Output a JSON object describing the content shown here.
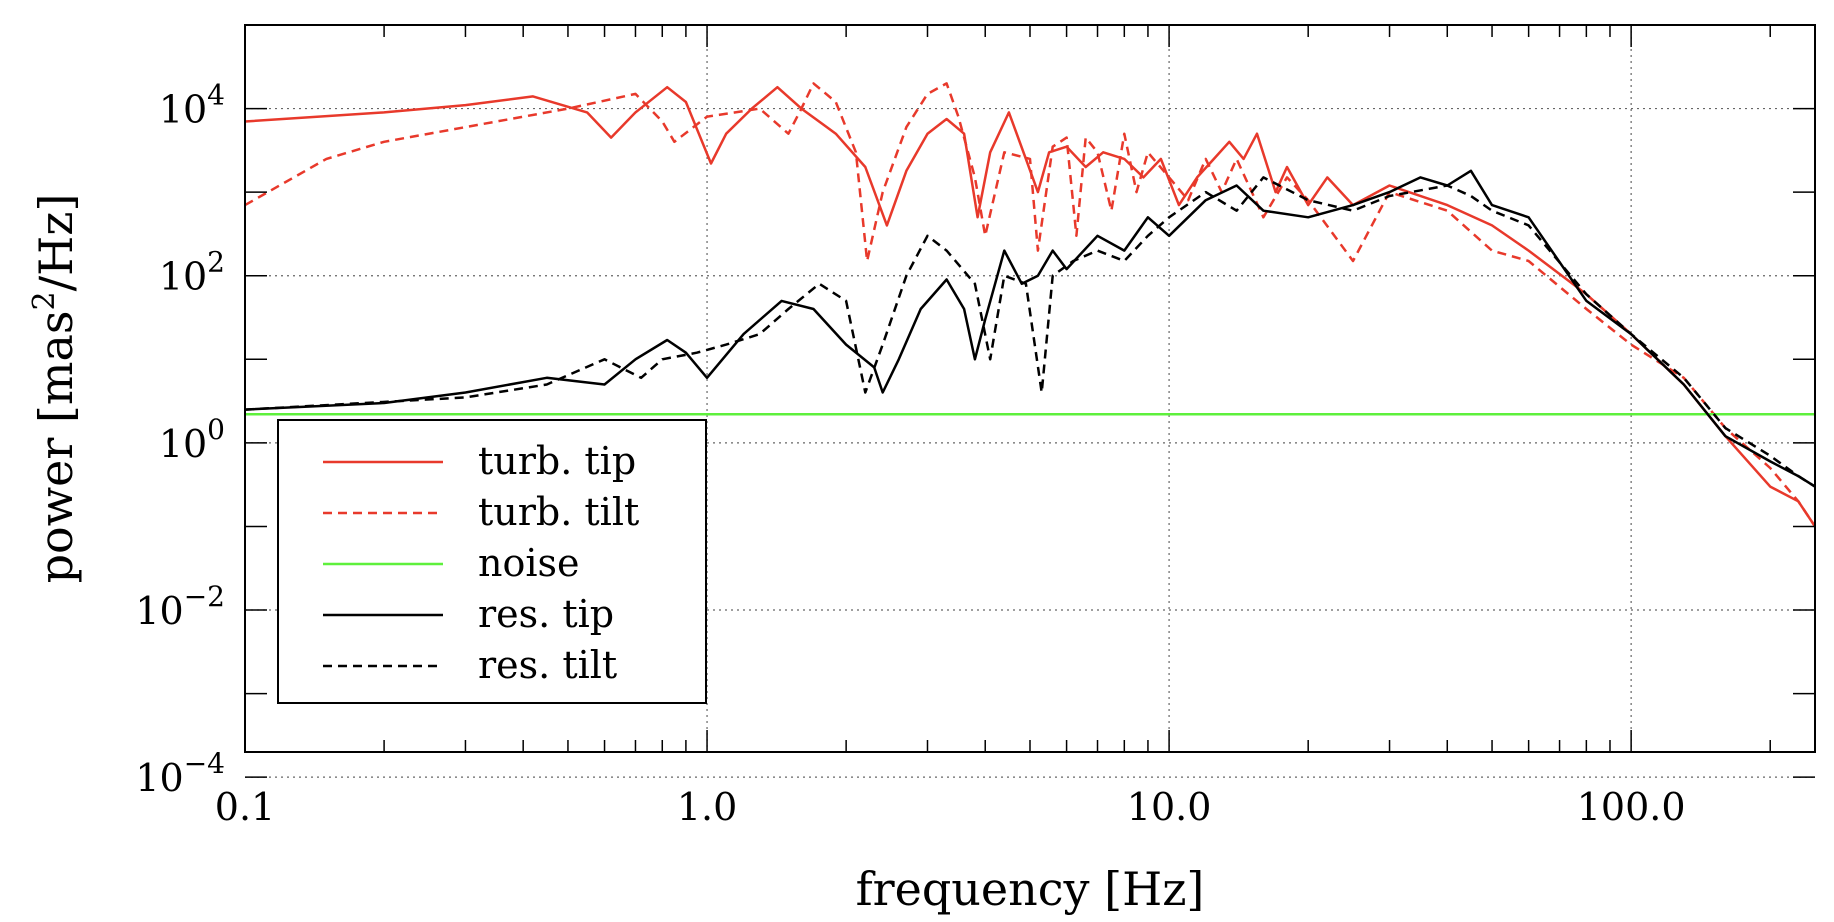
{
  "chart_data": {
    "type": "line",
    "title": "",
    "xlabel": "frequency [Hz]",
    "ylabel_base": "power [mas",
    "ylabel_sup": "2",
    "ylabel_tail": "/Hz]",
    "xscale": "log",
    "yscale": "log",
    "xlim": [
      0.1,
      250
    ],
    "ylim": [
      0.0002,
      100000
    ],
    "x_ticks": [
      {
        "value": 0.1,
        "label": "0.1"
      },
      {
        "value": 1.0,
        "label": "1.0"
      },
      {
        "value": 10.0,
        "label": "10.0"
      },
      {
        "value": 100.0,
        "label": "100.0"
      }
    ],
    "y_ticks": [
      {
        "value": 0.0001,
        "base": "10",
        "exp": "−4"
      },
      {
        "value": 0.01,
        "base": "10",
        "exp": "−2"
      },
      {
        "value": 1,
        "base": "10",
        "exp": "0"
      },
      {
        "value": 100,
        "base": "10",
        "exp": "2"
      },
      {
        "value": 10000,
        "base": "10",
        "exp": "4"
      }
    ],
    "grid": true,
    "legend_position": "bottom-left",
    "colors": {
      "turb": "#e8392b",
      "noise": "#5ef03c",
      "res": "#000000"
    },
    "series": [
      {
        "name": "turb. tip",
        "color": "#e8392b",
        "dash": "solid",
        "points": [
          [
            0.1,
            7000
          ],
          [
            0.2,
            9000
          ],
          [
            0.3,
            11000
          ],
          [
            0.42,
            14000
          ],
          [
            0.55,
            9000
          ],
          [
            0.62,
            4500
          ],
          [
            0.7,
            9000
          ],
          [
            0.82,
            18000
          ],
          [
            0.9,
            12000
          ],
          [
            1.02,
            2200
          ],
          [
            1.1,
            5000
          ],
          [
            1.25,
            10000
          ],
          [
            1.42,
            18000
          ],
          [
            1.6,
            10000
          ],
          [
            1.9,
            5000
          ],
          [
            2.2,
            2000
          ],
          [
            2.45,
            400
          ],
          [
            2.7,
            1800
          ],
          [
            3.0,
            5000
          ],
          [
            3.3,
            7500
          ],
          [
            3.6,
            5000
          ],
          [
            3.85,
            500
          ],
          [
            4.1,
            3000
          ],
          [
            4.5,
            9000
          ],
          [
            4.9,
            2500
          ],
          [
            5.2,
            1000
          ],
          [
            5.5,
            3000
          ],
          [
            6.0,
            3500
          ],
          [
            6.6,
            2000
          ],
          [
            7.2,
            3000
          ],
          [
            8.0,
            2500
          ],
          [
            8.8,
            1500
          ],
          [
            9.6,
            2500
          ],
          [
            10.5,
            700
          ],
          [
            11.5,
            1500
          ],
          [
            12.5,
            2500
          ],
          [
            13.5,
            4000
          ],
          [
            14.5,
            2500
          ],
          [
            15.5,
            5000
          ],
          [
            17,
            1000
          ],
          [
            18,
            2000
          ],
          [
            20,
            700
          ],
          [
            22,
            1500
          ],
          [
            25,
            700
          ],
          [
            30,
            1200
          ],
          [
            40,
            700
          ],
          [
            50,
            400
          ],
          [
            60,
            200
          ],
          [
            80,
            60
          ],
          [
            100,
            20
          ],
          [
            130,
            5
          ],
          [
            160,
            1.2
          ],
          [
            200,
            0.3
          ],
          [
            230,
            0.2
          ],
          [
            250,
            0.1
          ]
        ]
      },
      {
        "name": "turb. tilt",
        "color": "#e8392b",
        "dash": "dashed",
        "points": [
          [
            0.1,
            700
          ],
          [
            0.15,
            2500
          ],
          [
            0.2,
            4000
          ],
          [
            0.3,
            6000
          ],
          [
            0.5,
            10000
          ],
          [
            0.7,
            15000
          ],
          [
            0.8,
            7000
          ],
          [
            0.85,
            4000
          ],
          [
            1.0,
            8000
          ],
          [
            1.3,
            10000
          ],
          [
            1.5,
            5000
          ],
          [
            1.6,
            10000
          ],
          [
            1.7,
            20000
          ],
          [
            1.9,
            12000
          ],
          [
            2.1,
            3000
          ],
          [
            2.22,
            150
          ],
          [
            2.4,
            1000
          ],
          [
            2.7,
            6000
          ],
          [
            3.0,
            15000
          ],
          [
            3.3,
            20000
          ],
          [
            3.5,
            8000
          ],
          [
            3.8,
            1500
          ],
          [
            4.0,
            300
          ],
          [
            4.4,
            3000
          ],
          [
            5.0,
            2500
          ],
          [
            5.2,
            200
          ],
          [
            5.6,
            3500
          ],
          [
            6.0,
            4500
          ],
          [
            6.3,
            300
          ],
          [
            6.6,
            4500
          ],
          [
            7.0,
            3000
          ],
          [
            7.5,
            600
          ],
          [
            8.0,
            5000
          ],
          [
            8.5,
            1000
          ],
          [
            9.0,
            3000
          ],
          [
            10,
            1500
          ],
          [
            11,
            800
          ],
          [
            12,
            2500
          ],
          [
            13,
            1000
          ],
          [
            14,
            2500
          ],
          [
            16,
            500
          ],
          [
            18,
            1500
          ],
          [
            20,
            800
          ],
          [
            25,
            150
          ],
          [
            30,
            1000
          ],
          [
            40,
            600
          ],
          [
            50,
            200
          ],
          [
            60,
            150
          ],
          [
            80,
            40
          ],
          [
            100,
            15
          ],
          [
            130,
            6
          ],
          [
            160,
            1.5
          ],
          [
            200,
            0.5
          ],
          [
            230,
            0.2
          ],
          [
            250,
            0.1
          ]
        ]
      },
      {
        "name": "noise",
        "color": "#5ef03c",
        "dash": "solid",
        "points": [
          [
            0.1,
            2.2
          ],
          [
            250,
            2.2
          ]
        ]
      },
      {
        "name": "res. tip",
        "color": "#000000",
        "dash": "solid",
        "points": [
          [
            0.1,
            2.5
          ],
          [
            0.2,
            3
          ],
          [
            0.3,
            4
          ],
          [
            0.45,
            6
          ],
          [
            0.6,
            5
          ],
          [
            0.7,
            10
          ],
          [
            0.82,
            17
          ],
          [
            0.9,
            12
          ],
          [
            1.0,
            6
          ],
          [
            1.2,
            20
          ],
          [
            1.45,
            50
          ],
          [
            1.7,
            40
          ],
          [
            2.0,
            15
          ],
          [
            2.3,
            8
          ],
          [
            2.4,
            4
          ],
          [
            2.6,
            10
          ],
          [
            2.9,
            40
          ],
          [
            3.3,
            90
          ],
          [
            3.6,
            40
          ],
          [
            3.8,
            10
          ],
          [
            4.0,
            30
          ],
          [
            4.4,
            200
          ],
          [
            4.8,
            80
          ],
          [
            5.2,
            100
          ],
          [
            5.6,
            200
          ],
          [
            6.0,
            120
          ],
          [
            7.0,
            300
          ],
          [
            8.0,
            200
          ],
          [
            9.0,
            500
          ],
          [
            10,
            300
          ],
          [
            12,
            800
          ],
          [
            14,
            1200
          ],
          [
            16,
            600
          ],
          [
            20,
            500
          ],
          [
            25,
            700
          ],
          [
            30,
            1000
          ],
          [
            35,
            1500
          ],
          [
            40,
            1200
          ],
          [
            45,
            1800
          ],
          [
            50,
            700
          ],
          [
            60,
            500
          ],
          [
            80,
            50
          ],
          [
            100,
            20
          ],
          [
            130,
            5
          ],
          [
            160,
            1.2
          ],
          [
            200,
            0.6
          ],
          [
            230,
            0.4
          ],
          [
            250,
            0.3
          ]
        ]
      },
      {
        "name": "res. tilt",
        "color": "#000000",
        "dash": "dashed",
        "points": [
          [
            0.1,
            2.5
          ],
          [
            0.3,
            3.5
          ],
          [
            0.45,
            5
          ],
          [
            0.6,
            10
          ],
          [
            0.72,
            6
          ],
          [
            0.8,
            10
          ],
          [
            0.95,
            12
          ],
          [
            1.1,
            15
          ],
          [
            1.3,
            20
          ],
          [
            1.5,
            40
          ],
          [
            1.75,
            80
          ],
          [
            2.0,
            50
          ],
          [
            2.2,
            4
          ],
          [
            2.4,
            15
          ],
          [
            2.7,
            100
          ],
          [
            3.0,
            300
          ],
          [
            3.3,
            200
          ],
          [
            3.8,
            80
          ],
          [
            4.1,
            10
          ],
          [
            4.4,
            100
          ],
          [
            4.9,
            80
          ],
          [
            5.3,
            4
          ],
          [
            5.6,
            100
          ],
          [
            6.2,
            150
          ],
          [
            7.0,
            200
          ],
          [
            8.0,
            150
          ],
          [
            9,
            300
          ],
          [
            10,
            500
          ],
          [
            12,
            1000
          ],
          [
            14,
            600
          ],
          [
            16,
            1500
          ],
          [
            20,
            800
          ],
          [
            25,
            600
          ],
          [
            30,
            900
          ],
          [
            40,
            1200
          ],
          [
            45,
            900
          ],
          [
            50,
            600
          ],
          [
            60,
            400
          ],
          [
            80,
            60
          ],
          [
            100,
            20
          ],
          [
            130,
            6
          ],
          [
            160,
            1.5
          ],
          [
            200,
            0.7
          ],
          [
            230,
            0.4
          ],
          [
            250,
            0.3
          ]
        ]
      }
    ]
  }
}
